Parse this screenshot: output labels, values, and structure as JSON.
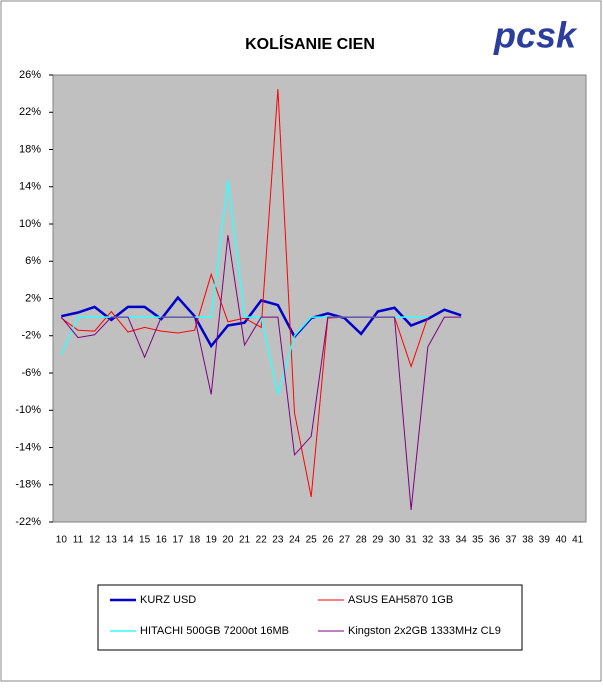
{
  "logo": "pcsk",
  "chart_data": {
    "type": "line",
    "title": "KOLÍSANIE CIEN",
    "categories": [
      "10",
      "11",
      "12",
      "13",
      "14",
      "15",
      "16",
      "17",
      "18",
      "19",
      "20",
      "21",
      "22",
      "23",
      "24",
      "25",
      "26",
      "27",
      "28",
      "29",
      "30",
      "31",
      "32",
      "33",
      "34",
      "35",
      "36",
      "37",
      "38",
      "39",
      "40",
      "41"
    ],
    "series": [
      {
        "name": "KURZ USD",
        "color": "#0000cc",
        "values": [
          0.1,
          0.5,
          1.1,
          -0.3,
          1.1,
          1.1,
          -0.2,
          2.1,
          0.1,
          -3.1,
          -0.9,
          -0.6,
          1.8,
          1.3,
          -2.1,
          -0.1,
          0.4,
          -0.1,
          -1.8,
          0.6,
          1.0,
          -0.9,
          -0.2,
          0.8,
          0.2,
          null,
          null,
          null,
          null,
          null,
          null,
          null
        ]
      },
      {
        "name": "ASUS EAH5870  1GB",
        "color": "#ff0000",
        "values": [
          -0.1,
          -1.4,
          -1.5,
          0.6,
          -1.6,
          -1.1,
          -1.5,
          -1.7,
          -1.4,
          4.6,
          -0.5,
          -0.1,
          -1.1,
          24.5,
          -10.3,
          -19.3,
          -0.1,
          0,
          0,
          0,
          0,
          -5.3,
          0,
          null,
          null,
          null,
          null,
          null,
          null,
          null,
          null,
          null
        ]
      },
      {
        "name": "HITACHI 500GB 7200ot 16MB",
        "color": "#33ffff",
        "values": [
          -4,
          0,
          0,
          0,
          0,
          0,
          0,
          0,
          0,
          0,
          14.7,
          0,
          0,
          -8.3,
          -2,
          0,
          0,
          0,
          0,
          0,
          0,
          0,
          0,
          null,
          null,
          null,
          null,
          null,
          null,
          null,
          null,
          null
        ]
      },
      {
        "name": "Kingston 2x2GB 1333MHz CL9",
        "color": "#800080",
        "values": [
          0,
          -2.2,
          -1.9,
          0,
          0,
          -4.3,
          0,
          0,
          0,
          -8.3,
          8.8,
          -3.0,
          0,
          0,
          -14.8,
          -12.8,
          0,
          0,
          0,
          0,
          0,
          -20.7,
          -3.2,
          0,
          0,
          null,
          null,
          null,
          null,
          null,
          null,
          null
        ]
      }
    ],
    "ylim": [
      -22,
      26
    ],
    "yticks": [
      {
        "value": 26,
        "label": "26%"
      },
      {
        "value": 22,
        "label": "22%"
      },
      {
        "value": 18,
        "label": "18%"
      },
      {
        "value": 14,
        "label": "14%"
      },
      {
        "value": 10,
        "label": "10%"
      },
      {
        "value": 6,
        "label": "6%"
      },
      {
        "value": 2,
        "label": "2%"
      },
      {
        "value": -2,
        "label": "-2%"
      },
      {
        "value": -6,
        "label": "-6%"
      },
      {
        "value": -10,
        "label": "-10%"
      },
      {
        "value": -14,
        "label": "-14%"
      },
      {
        "value": -18,
        "label": "-18%"
      },
      {
        "value": -22,
        "label": "-22%"
      }
    ],
    "grid": false
  }
}
